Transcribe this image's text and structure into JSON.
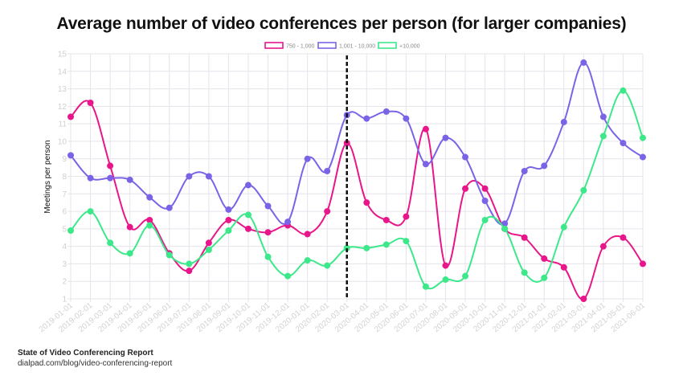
{
  "title": "Average number of video conferences per person (for larger companies)",
  "footer": {
    "source_title": "State of Video Conferencing Report",
    "source_url": "dialpad.com/blog/video-conferencing-report"
  },
  "chart_data": {
    "type": "line",
    "title": "Average number of video conferences per person (for larger companies)",
    "xlabel": "",
    "ylabel": "Meetings per person",
    "ylim": [
      1,
      15
    ],
    "yticks": [
      1,
      2,
      3,
      4,
      5,
      6,
      7,
      8,
      9,
      10,
      11,
      12,
      13,
      14,
      15
    ],
    "grid": true,
    "legend_position": "top",
    "smooth": true,
    "annotation": {
      "type": "vertical-dashed-line",
      "x": "2020-03-01",
      "color": "#111111"
    },
    "categories": [
      "2019-01-01",
      "2019-02-01",
      "2019-03-01",
      "2019-04-01",
      "2019-05-01",
      "2019-06-01",
      "2019-07-01",
      "2019-08-01",
      "2019-09-01",
      "2019-10-01",
      "2019-11-01",
      "2019-12-01",
      "2020-01-01",
      "2020-02-01",
      "2020-03-01",
      "2020-04-01",
      "2020-05-01",
      "2020-06-01",
      "2020-07-01",
      "2020-08-01",
      "2020-09-01",
      "2020-10-01",
      "2020-11-01",
      "2020-12-01",
      "2021-01-01",
      "2021-02-01",
      "2021-03-01",
      "2021-04-01",
      "2021-05-01",
      "2021-06-01"
    ],
    "series": [
      {
        "name": "750 - 1,000",
        "color": "#e8168a",
        "values": [
          11.4,
          12.2,
          8.6,
          5.1,
          5.5,
          3.6,
          2.6,
          4.2,
          5.5,
          5.0,
          4.8,
          5.2,
          4.7,
          6.0,
          9.9,
          6.5,
          5.5,
          5.7,
          10.7,
          2.9,
          7.3,
          7.3,
          5.0,
          4.5,
          3.3,
          2.8,
          1.0,
          4.0,
          4.5,
          3.0
        ]
      },
      {
        "name": "1,001 - 10,000",
        "color": "#7b63e8",
        "values": [
          9.2,
          7.9,
          7.9,
          7.8,
          6.8,
          6.2,
          8.0,
          8.0,
          6.1,
          7.5,
          6.3,
          5.4,
          9.0,
          8.3,
          11.5,
          11.3,
          11.7,
          11.3,
          8.7,
          10.2,
          9.1,
          6.6,
          5.3,
          8.3,
          8.6,
          11.1,
          14.5,
          11.4,
          9.9,
          9.1
        ]
      },
      {
        "name": "+10,000",
        "color": "#3de88a",
        "values": [
          4.9,
          6.0,
          4.2,
          3.6,
          5.2,
          3.5,
          3.0,
          3.8,
          4.9,
          5.8,
          3.4,
          2.3,
          3.2,
          2.9,
          3.9,
          3.9,
          4.1,
          4.3,
          1.7,
          2.1,
          2.3,
          5.5,
          5.0,
          2.5,
          2.2,
          5.1,
          7.2,
          10.3,
          12.9,
          10.2
        ]
      }
    ]
  },
  "colors": {
    "grid": "#e6e3ea",
    "axis_text": "#cfcfcf",
    "annotation": "#111111"
  }
}
